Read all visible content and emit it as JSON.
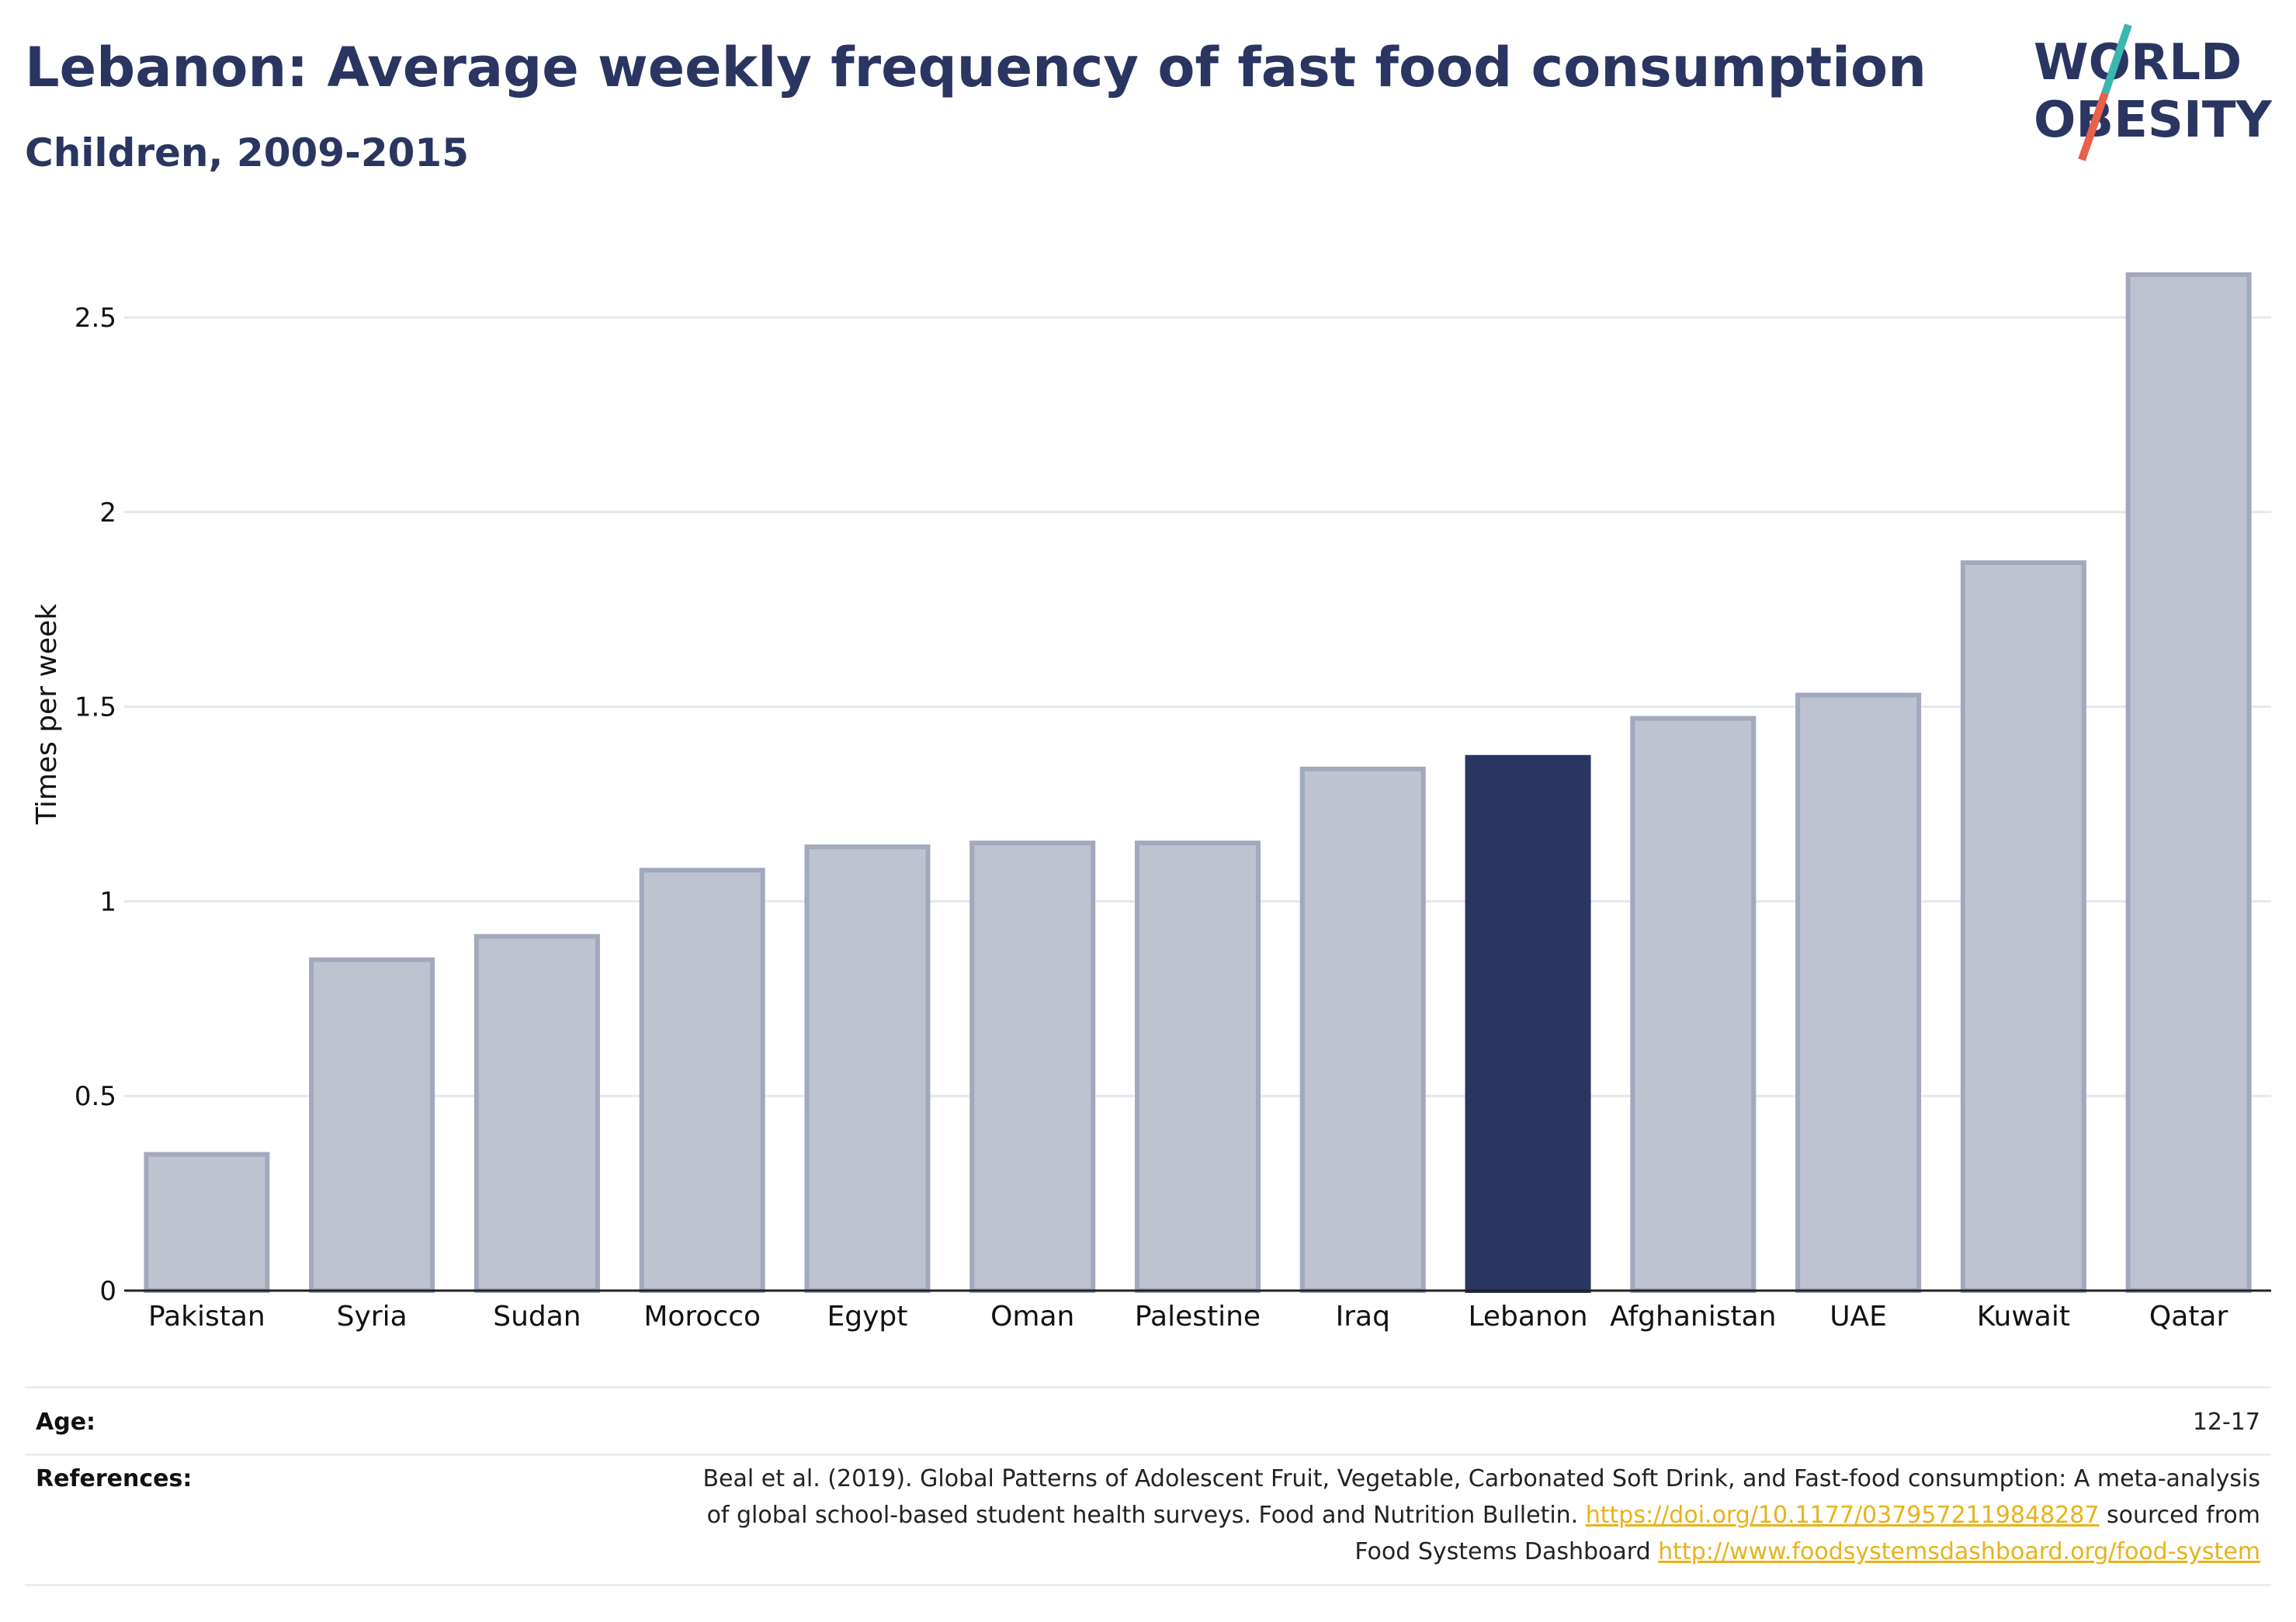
{
  "header": {
    "title": "Lebanon: Average weekly frequency of fast food consumption",
    "subtitle": "Children, 2009-2015"
  },
  "logo": {
    "line1": "WORLD",
    "line2": "OBESITY",
    "text_color": "#2a3561",
    "slash_top_color": "#3ab8b0",
    "slash_bottom_color": "#e9604b"
  },
  "colors": {
    "highlight": "#2a3561",
    "bar_fill": "#bec3cf",
    "bar_stroke": "#a2a8bd",
    "grid": "#e6e8ef",
    "axis": "#222222",
    "link": "#e8b21a"
  },
  "chart_data": {
    "type": "bar",
    "title": "Lebanon: Average weekly frequency of fast food consumption",
    "subtitle": "Children, 2009-2015",
    "xlabel": "",
    "ylabel": "Times per week",
    "categories": [
      "Pakistan",
      "Syria",
      "Sudan",
      "Morocco",
      "Egypt",
      "Oman",
      "Palestine",
      "Iraq",
      "Lebanon",
      "Afghanistan",
      "UAE",
      "Kuwait",
      "Qatar"
    ],
    "values": [
      0.35,
      0.85,
      0.91,
      1.08,
      1.14,
      1.15,
      1.15,
      1.34,
      1.37,
      1.47,
      1.53,
      1.87,
      2.61
    ],
    "highlight": "Lebanon",
    "ylim": [
      0,
      2.7
    ],
    "yticks": [
      0,
      0.5,
      1,
      1.5,
      2,
      2.5
    ],
    "ytick_labels": [
      "0",
      "0.5",
      "1",
      "1.5",
      "2",
      "2.5"
    ],
    "grid": true
  },
  "footer": {
    "age_label": "Age:",
    "age_value": "12-17",
    "references_label": "References:",
    "references_line1": "Beal et al. (2019). Global Patterns of Adolescent Fruit, Vegetable, Carbonated Soft Drink, and Fast-food consumption: A meta-analysis",
    "references_line2_text": "of global school-based student health surveys. Food and Nutrition Bulletin. ",
    "references_line2_link": "https://doi.org/10.1177/0379572119848287",
    "references_line2_tail": " sourced from",
    "references_line3_text": "Food Systems Dashboard ",
    "references_line3_link": "http://www.foodsystemsdashboard.org/food-system"
  }
}
